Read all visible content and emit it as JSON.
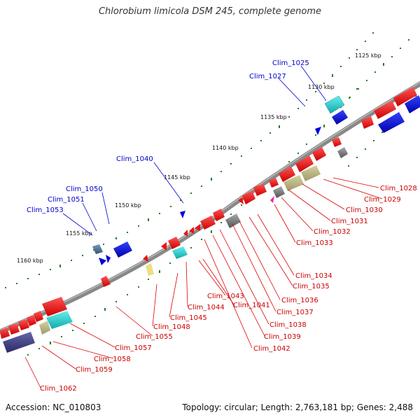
{
  "title": "Chlorobium limicola DSM 245, complete genome",
  "accession_text": "Accession: NC_010803",
  "summary_text": "Topology: circular; Length: 2,763,181 bp; Genes: 2,488",
  "colors": {
    "backbone": "#777777",
    "tick": "#2a7a2a",
    "forward_label": "#0000cc",
    "reverse_label": "#cc0000",
    "gene_red": "#ee1111",
    "gene_blue": "#0000dd",
    "gene_cyan": "#22cccc",
    "gene_khaki": "#b5b079",
    "gene_grey": "#777777",
    "gene_navy": "#3a3a88"
  },
  "scale_labels": [
    {
      "id": "1125",
      "text": "1125 kbp"
    },
    {
      "id": "1130",
      "text": "1130 kbp"
    },
    {
      "id": "1135",
      "text": "1135 kbp"
    },
    {
      "id": "1140",
      "text": "1140 kbp"
    },
    {
      "id": "1145",
      "text": "1145 kbp"
    },
    {
      "id": "1150",
      "text": "1150 kbp"
    },
    {
      "id": "1155",
      "text": "1155 kbp"
    },
    {
      "id": "1160",
      "text": "1160 kbp"
    }
  ],
  "forward_labels": [
    {
      "id": "1025",
      "text": "Clim_1025"
    },
    {
      "id": "1027",
      "text": "Clim_1027"
    },
    {
      "id": "1040",
      "text": "Clim_1040"
    },
    {
      "id": "1050",
      "text": "Clim_1050"
    },
    {
      "id": "1051",
      "text": "Clim_1051"
    },
    {
      "id": "1053",
      "text": "Clim_1053"
    }
  ],
  "reverse_labels": [
    {
      "id": "1028",
      "text": "Clim_1028"
    },
    {
      "id": "1029",
      "text": "Clim_1029"
    },
    {
      "id": "1030",
      "text": "Clim_1030"
    },
    {
      "id": "1031",
      "text": "Clim_1031"
    },
    {
      "id": "1032",
      "text": "Clim_1032"
    },
    {
      "id": "1033",
      "text": "Clim_1033"
    },
    {
      "id": "1034",
      "text": "Clim_1034"
    },
    {
      "id": "1035",
      "text": "Clim_1035"
    },
    {
      "id": "1036",
      "text": "Clim_1036"
    },
    {
      "id": "1037",
      "text": "Clim_1037"
    },
    {
      "id": "1038",
      "text": "Clim_1038"
    },
    {
      "id": "1039",
      "text": "Clim_1039"
    },
    {
      "id": "1041",
      "text": "Clim_1041"
    },
    {
      "id": "1042",
      "text": "Clim_1042"
    },
    {
      "id": "1043",
      "text": "Clim_1043"
    },
    {
      "id": "1044",
      "text": "Clim_1044"
    },
    {
      "id": "1045",
      "text": "Clim_1045"
    },
    {
      "id": "1048",
      "text": "Clim_1048"
    },
    {
      "id": "1055",
      "text": "Clim_1055"
    },
    {
      "id": "1057",
      "text": "Clim_1057"
    },
    {
      "id": "1058",
      "text": "Clim_1058"
    },
    {
      "id": "1059",
      "text": "Clim_1059"
    },
    {
      "id": "1062",
      "text": "Clim_1062"
    }
  ]
}
